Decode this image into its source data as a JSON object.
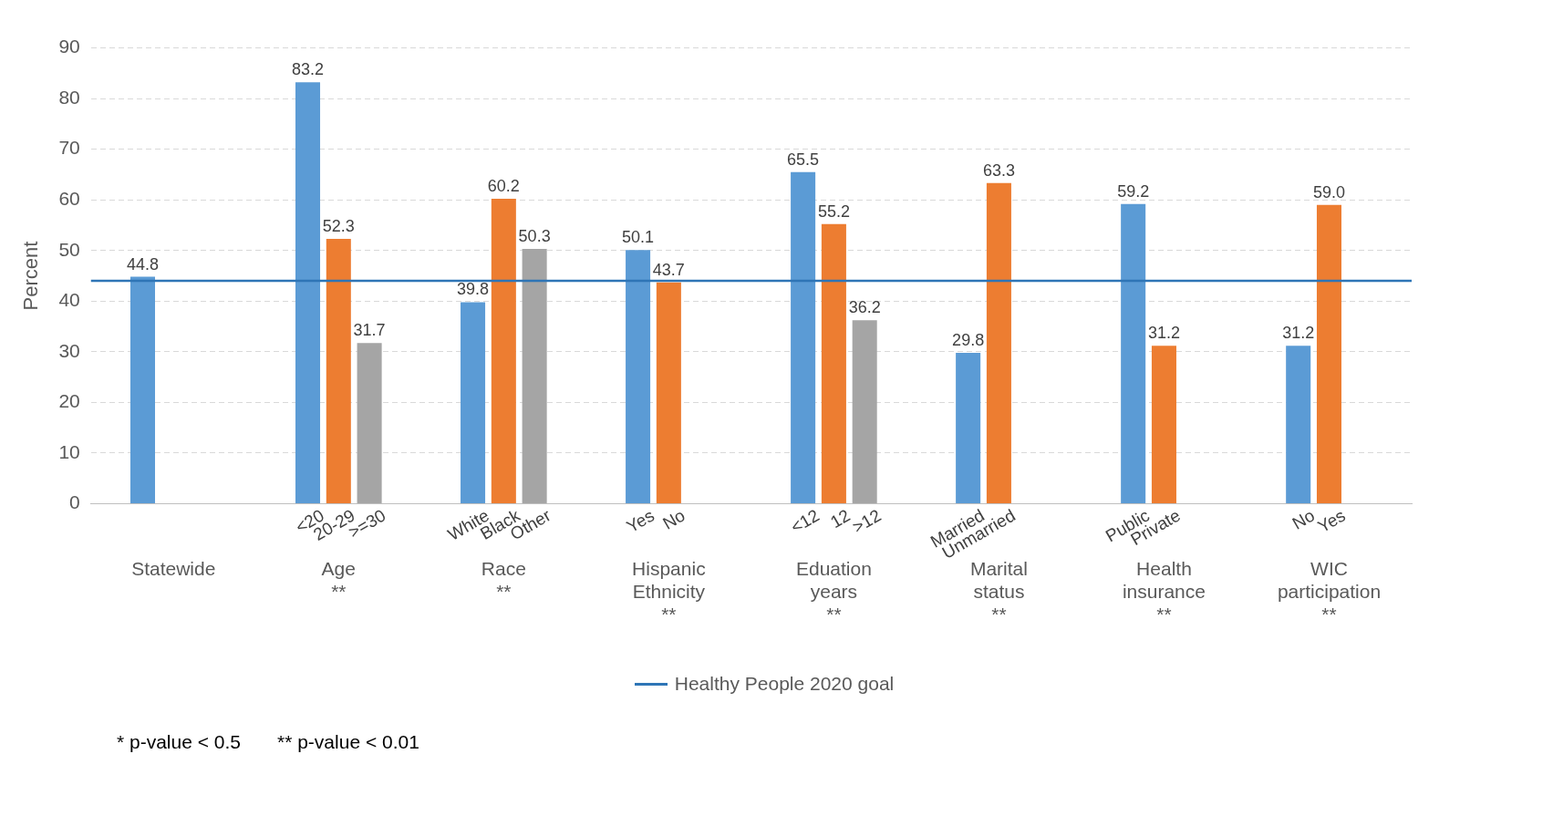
{
  "chart_data": {
    "type": "bar",
    "ylabel": "Percent",
    "categories": [
      "Statewide",
      "Age\n**",
      "Race\n**",
      "Hispanic\nEthnicity\n**",
      "Eduation\nyears\n**",
      "Marital\nstatus\n**",
      "Health\ninsurance\n**",
      "WIC\nparticipation\n**"
    ],
    "series": [
      {
        "color": "#5b9bd5",
        "values": [
          44.8,
          83.2,
          39.8,
          50.1,
          65.5,
          29.8,
          59.2,
          31.2
        ],
        "value_labels": [
          "44.8",
          "83.2",
          "39.8",
          "50.1",
          "65.5",
          "29.8",
          "59.2",
          "31.2"
        ]
      },
      {
        "color": "#ed7d31",
        "values": [
          null,
          52.3,
          60.2,
          43.7,
          55.2,
          63.3,
          31.2,
          59.0
        ],
        "value_labels": [
          null,
          "52.3",
          "60.2",
          "43.7",
          "55.2",
          "63.3",
          "31.2",
          "59.0"
        ]
      },
      {
        "color": "#a5a5a5",
        "values": [
          null,
          31.7,
          50.3,
          null,
          36.2,
          null,
          null,
          null
        ],
        "value_labels": [
          null,
          "31.7",
          "50.3",
          null,
          "36.2",
          null,
          null,
          null
        ]
      }
    ],
    "ylim": [
      0,
      90
    ],
    "yticks": [
      0,
      10,
      20,
      30,
      40,
      50,
      60,
      70,
      80,
      90
    ],
    "grid": "y",
    "legend": "bottom",
    "ref_lines": [
      {
        "axis": "y",
        "value": 44,
        "label": "Healthy People 2020 goal",
        "color": "#2e75b6"
      }
    ],
    "annotations": [
      "<20",
      "20-29",
      ">=30",
      "White",
      "Black",
      "Other",
      "Yes",
      "No",
      "<12",
      "12",
      ">12",
      "Married",
      "Unmarried",
      "Public",
      "Private",
      "No",
      "Yes",
      "* p-value < 0.5",
      "** p-value < 0.01"
    ]
  }
}
